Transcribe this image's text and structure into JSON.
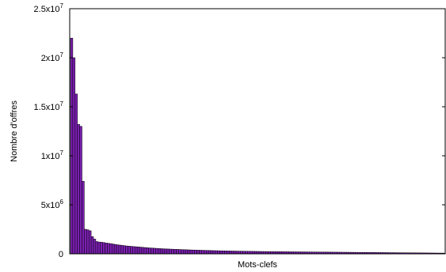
{
  "chart_data": {
    "type": "bar",
    "xlabel": "Mots-clefs",
    "ylabel": "Nombre d'offres",
    "ylim": [
      0,
      25000000
    ],
    "grid": false,
    "legend": "none",
    "bar_color": "#7a1fb0",
    "bar_edge_color": "#000000",
    "y_ticks": [
      {
        "value": 0,
        "mantissa": "0",
        "exp": ""
      },
      {
        "value": 5000000,
        "mantissa": "5x10",
        "exp": "6"
      },
      {
        "value": 10000000,
        "mantissa": "1x10",
        "exp": "7"
      },
      {
        "value": 15000000,
        "mantissa": "1.5x10",
        "exp": "7"
      },
      {
        "value": 20000000,
        "mantissa": "2x10",
        "exp": "7"
      },
      {
        "value": 25000000,
        "mantissa": "2.5x10",
        "exp": "7"
      }
    ],
    "values": [
      22000000,
      20000000,
      16300000,
      13200000,
      13000000,
      7400000,
      2500000,
      2450000,
      2350000,
      1750000,
      1500000,
      1250000,
      1200000,
      1180000,
      1150000,
      1100000,
      1070000,
      1040000,
      1000000,
      960000,
      920000,
      890000,
      860000,
      830000,
      800000,
      780000,
      760000,
      740000,
      720000,
      700000,
      680000,
      660000,
      640000,
      620000,
      600000,
      585000,
      570000,
      555000,
      540000,
      525000,
      510000,
      500000,
      490000,
      480000,
      470000,
      460000,
      450000,
      440000,
      430000,
      420000,
      412000,
      404000,
      396000,
      388000,
      380000,
      372000,
      365000,
      358000,
      351000,
      344000,
      338000,
      332000,
      326000,
      320000,
      314000,
      308000,
      303000,
      298000,
      293000,
      288000,
      283000,
      279000,
      275000,
      271000,
      267000,
      263000,
      259000,
      255000,
      251000,
      248000,
      245000,
      242000,
      239000,
      236000,
      233000,
      230000,
      227000,
      224000,
      221000,
      218000,
      216000,
      214000,
      212000,
      210000,
      208000,
      206000,
      204000,
      202000,
      200000,
      198000,
      196000,
      194000,
      192000,
      190000,
      188000,
      186000,
      184000,
      182000,
      180000,
      178000,
      176000,
      174000,
      172000,
      170000,
      168000,
      166000,
      164000,
      162000,
      160000,
      158000,
      156000,
      154000,
      152000,
      150000,
      148000,
      146000,
      144000,
      142000,
      140000,
      138000,
      136000,
      134000,
      132000,
      130000,
      128000,
      126000,
      124000,
      122000,
      120000,
      118000,
      116000,
      114000,
      112000,
      110000,
      108000,
      106000,
      104000,
      102000,
      100000,
      98000,
      96000,
      94000,
      92000,
      90000,
      88000,
      86000,
      84000,
      82000,
      80000,
      78000,
      76000,
      74000,
      72000
    ]
  }
}
